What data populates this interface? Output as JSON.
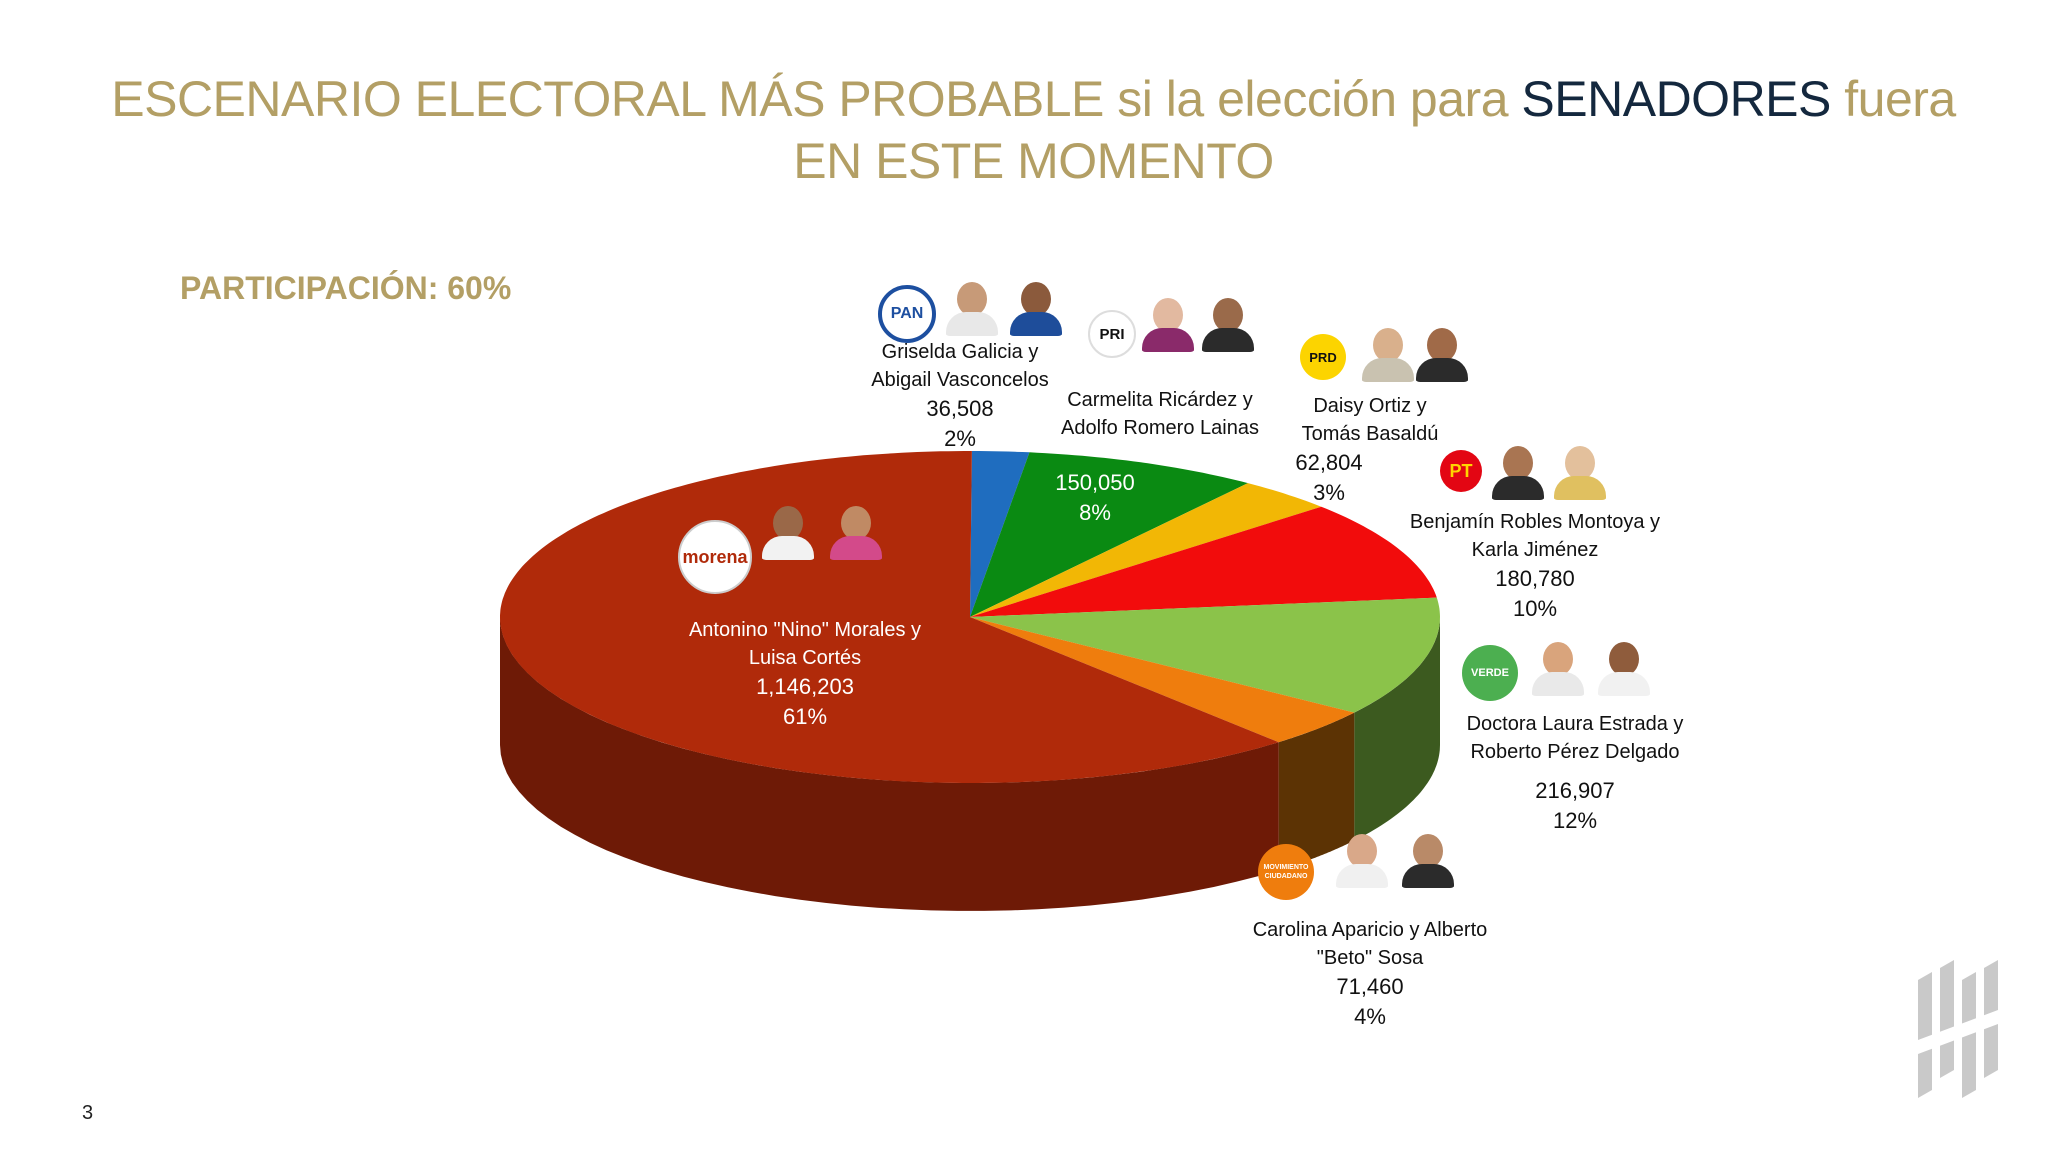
{
  "title": {
    "part1": "ESCENARIO ELECTORAL MÁS PROBABLE si la elección para ",
    "highlight": "SENADORES",
    "part2": " fuera",
    "line2": "EN ESTE MOMENTO"
  },
  "participation": "PARTICIPACIÓN: 60%",
  "page_number": "3",
  "chart_data": {
    "type": "pie",
    "style": "3d",
    "slices": [
      {
        "party": "PAN",
        "candidates_line1": "Griselda Galicia y",
        "candidates_line2": "Abigail Vasconcelos",
        "value": 36508,
        "value_label": "36,508",
        "percent_label": "2%",
        "color": "#1f6dbf",
        "side_color": "#174f8a"
      },
      {
        "party": "PRI",
        "candidates_line1": "Carmelita Ricárdez y",
        "candidates_line2": "Adolfo Romero Lainas",
        "value": 150050,
        "value_label": "150,050",
        "percent_label": "8%",
        "color": "#0a8a12",
        "side_color": "#06560b"
      },
      {
        "party": "PRD",
        "candidates_line1": "Daisy Ortiz y",
        "candidates_line2": "Tomás Basaldú",
        "value": 62804,
        "value_label": "62,804",
        "percent_label": "3%",
        "color": "#f2b705",
        "side_color": "#9c7603"
      },
      {
        "party": "PT",
        "candidates_line1": "Benjamín Robles Montoya y",
        "candidates_line2": "Karla Jiménez",
        "value": 180780,
        "value_label": "180,780",
        "percent_label": "10%",
        "color": "#f20c0c",
        "side_color": "#960707"
      },
      {
        "party": "VERDE",
        "candidates_line1": "Doctora Laura Estrada y",
        "candidates_line2": "Roberto Pérez Delgado",
        "value": 216907,
        "value_label": "216,907",
        "percent_label": "12%",
        "color": "#8bc34a",
        "side_color": "#3c5a1f"
      },
      {
        "party": "MOVIMIENTO CIUDADANO",
        "candidates_line1": "Carolina Aparicio y Alberto",
        "candidates_line2": "\"Beto\" Sosa",
        "value": 71460,
        "value_label": "71,460",
        "percent_label": "4%",
        "color": "#ef7d0d",
        "side_color": "#5c3304"
      },
      {
        "party": "morena",
        "candidates_line1": "Antonino \"Nino\" Morales y",
        "candidates_line2": "Luisa Cortés",
        "value": 1146203,
        "value_label": "1,146,203",
        "percent_label": "61%",
        "color": "#b02a0a",
        "side_color": "#6e1a06"
      }
    ]
  },
  "logos": {
    "pan": "PAN",
    "pri": "PRI",
    "prd": "PRD",
    "pt": "PT",
    "verde": "VERDE",
    "mc": "MOVIMIENTO CIUDADANO",
    "morena": "morena"
  },
  "brand_logo_icon": "stacked-bars-logo-icon"
}
